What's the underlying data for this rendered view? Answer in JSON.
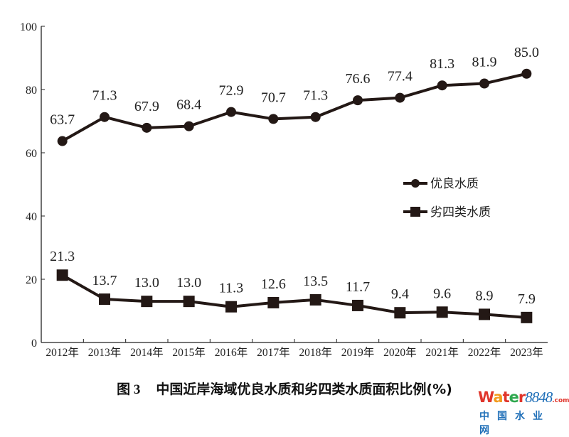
{
  "chart_data": {
    "type": "line",
    "title": "图 3　中国近岸海域优良水质和劣四类水质面积比例(%)",
    "title_number": "图 3",
    "title_text": "中国近岸海域优良水质和劣四类水质面积比例(%)",
    "categories": [
      "2012年",
      "2013年",
      "2014年",
      "2015年",
      "2016年",
      "2017年",
      "2018年",
      "2019年",
      "2020年",
      "2021年",
      "2022年",
      "2023年"
    ],
    "series": [
      {
        "name": "优良水质",
        "marker": "circle",
        "color": "#231815",
        "values": [
          63.7,
          71.3,
          67.9,
          68.4,
          72.9,
          70.7,
          71.3,
          76.6,
          77.4,
          81.3,
          81.9,
          85.0
        ]
      },
      {
        "name": "劣四类水质",
        "marker": "square",
        "color": "#231815",
        "values": [
          21.3,
          13.7,
          13.0,
          13.0,
          11.3,
          12.6,
          13.5,
          11.7,
          9.4,
          9.6,
          8.9,
          7.9
        ]
      }
    ],
    "ylim": [
      0,
      100
    ],
    "yticks": [
      0,
      20,
      40,
      60,
      80,
      100
    ],
    "xlabel": "",
    "ylabel": "",
    "grid": false,
    "legend": "right-middle"
  },
  "watermark": {
    "logo": "water8848.com",
    "sub": "中国水业网"
  }
}
